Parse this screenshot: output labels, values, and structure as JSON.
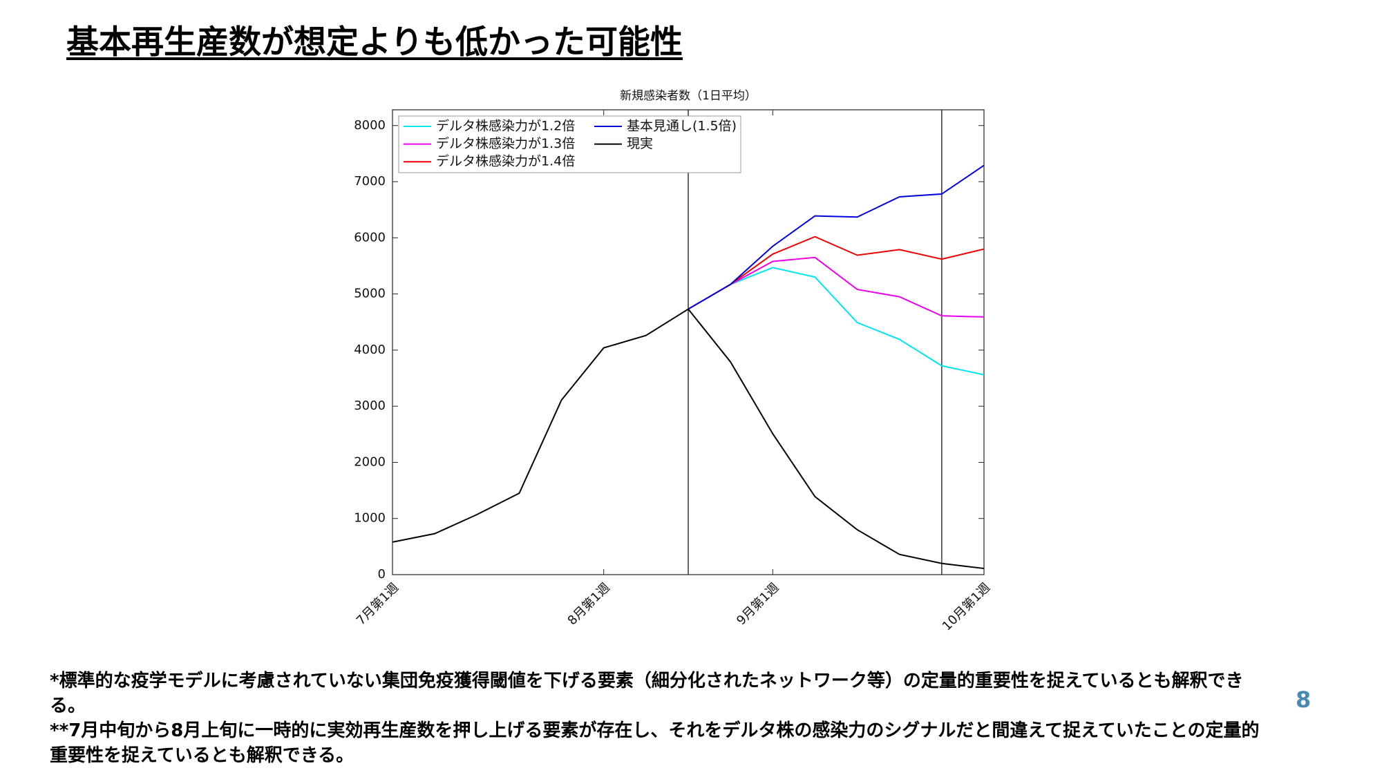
{
  "header": {
    "title": "基本再生産数が想定よりも低かった可能性"
  },
  "chart_data": {
    "type": "line",
    "title": "新規感染者数（1日平均）",
    "categories": [
      "7月第1週",
      null,
      null,
      null,
      null,
      "8月第1週",
      null,
      null,
      null,
      "9月第1週",
      null,
      null,
      null,
      null,
      "10月第1週"
    ],
    "series": [
      {
        "name": "デルタ株感染力が1.2倍",
        "color": "#00e5ee",
        "values": [
          null,
          null,
          null,
          null,
          null,
          null,
          null,
          4730,
          5170,
          5470,
          5300,
          4490,
          4190,
          3720,
          3560
        ]
      },
      {
        "name": "デルタ株感染力が1.3倍",
        "color": "#ee00ee",
        "values": [
          null,
          null,
          null,
          null,
          null,
          null,
          null,
          4730,
          5170,
          5580,
          5650,
          5080,
          4950,
          4610,
          4590
        ]
      },
      {
        "name": "デルタ株感染力が1.4倍",
        "color": "#ee0000",
        "values": [
          null,
          null,
          null,
          null,
          null,
          null,
          null,
          4730,
          5170,
          5710,
          6020,
          5690,
          5790,
          5620,
          5800
        ]
      },
      {
        "name": "基本見通し(1.5倍)",
        "color": "#0000dd",
        "values": [
          null,
          null,
          null,
          null,
          null,
          null,
          null,
          4730,
          5170,
          5850,
          6390,
          6370,
          6730,
          6780,
          7290
        ]
      },
      {
        "name": "現実",
        "color": "#000000",
        "values": [
          580,
          730,
          1070,
          1450,
          3110,
          4040,
          4260,
          4730,
          3790,
          2510,
          1390,
          800,
          360,
          200,
          110
        ]
      }
    ],
    "ylim": [
      0,
      8280
    ],
    "yticks": [
      0,
      1000,
      2000,
      3000,
      4000,
      5000,
      6000,
      7000,
      8000
    ],
    "vlines": [
      7,
      13
    ],
    "legend": "upper left",
    "grid": false
  },
  "notes": [
    "*標準的な疫学モデルに考慮されていない集団免疫獲得閾値を下げる要素（細分化されたネットワーク等）の定量的重要性を捉えているとも解釈できる。",
    "**7月中旬から8月上旬に一時的に実効再生産数を押し上げる要素が存在し、それをデルタ株の感染力のシグナルだと間違えて捉えていたことの定量的重要性を捉えているとも解釈できる。"
  ],
  "page_number": "8"
}
